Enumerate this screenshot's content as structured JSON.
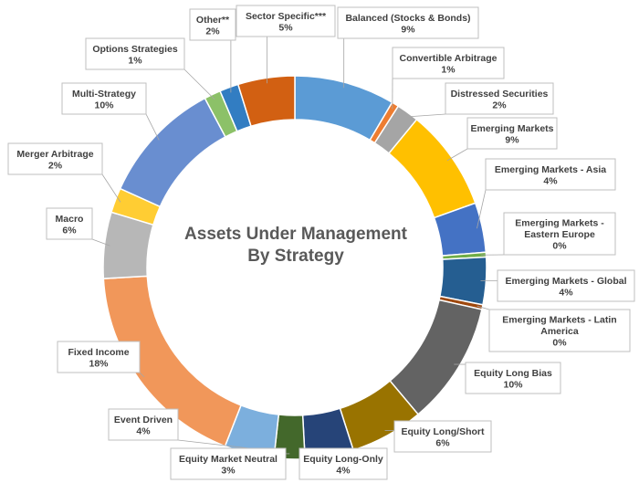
{
  "chart_data": {
    "type": "pie",
    "variant": "doughnut",
    "title_lines": [
      "Assets Under Management",
      "By Strategy"
    ],
    "series": [
      {
        "name": "Balanced (Stocks & Bonds)",
        "label_lines": [
          "Balanced (Stocks & Bonds)"
        ],
        "pct_label": "9%",
        "value": 8.5,
        "color": "#5b9bd5"
      },
      {
        "name": "Convertible Arbitrage",
        "label_lines": [
          "Convertible Arbitrage"
        ],
        "pct_label": "1%",
        "value": 0.6,
        "color": "#ed7d31"
      },
      {
        "name": "Distressed Securities",
        "label_lines": [
          "Distressed Securities"
        ],
        "pct_label": "2%",
        "value": 1.9,
        "color": "#a5a5a5"
      },
      {
        "name": "Emerging Markets",
        "label_lines": [
          "Emerging Markets"
        ],
        "pct_label": "9%",
        "value": 8.6,
        "color": "#ffc000"
      },
      {
        "name": "Emerging Markets - Asia",
        "label_lines": [
          "Emerging Markets - Asia"
        ],
        "pct_label": "4%",
        "value": 4.2,
        "color": "#4472c4"
      },
      {
        "name": "Emerging Markets - Eastern Europe",
        "label_lines": [
          "Emerging Markets -",
          "Eastern Europe"
        ],
        "pct_label": "0%",
        "value": 0.4,
        "color": "#70ad47"
      },
      {
        "name": "Emerging Markets - Global",
        "label_lines": [
          "Emerging Markets - Global"
        ],
        "pct_label": "4%",
        "value": 4.0,
        "color": "#255e91"
      },
      {
        "name": "Emerging Markets - Latin America",
        "label_lines": [
          "Emerging Markets - Latin",
          "America"
        ],
        "pct_label": "0%",
        "value": 0.4,
        "color": "#9e480e"
      },
      {
        "name": "Equity Long Bias",
        "label_lines": [
          "Equity Long Bias"
        ],
        "pct_label": "10%",
        "value": 10.4,
        "color": "#636363"
      },
      {
        "name": "Equity Long/Short",
        "label_lines": [
          "Equity Long/Short"
        ],
        "pct_label": "6%",
        "value": 6.2,
        "color": "#997300"
      },
      {
        "name": "Equity Long-Only",
        "label_lines": [
          "Equity Long-Only"
        ],
        "pct_label": "4%",
        "value": 4.1,
        "color": "#264478"
      },
      {
        "name": "Equity Market Neutral",
        "label_lines": [
          "Equity Market Neutral"
        ],
        "pct_label": "3%",
        "value": 2.6,
        "color": "#43682b"
      },
      {
        "name": "Event Driven",
        "label_lines": [
          "Event Driven"
        ],
        "pct_label": "4%",
        "value": 4.2,
        "color": "#7cafdd"
      },
      {
        "name": "Fixed Income",
        "label_lines": [
          "Fixed Income"
        ],
        "pct_label": "18%",
        "value": 18.2,
        "color": "#f1975a"
      },
      {
        "name": "Macro",
        "label_lines": [
          "Macro"
        ],
        "pct_label": "6%",
        "value": 5.6,
        "color": "#b7b7b7"
      },
      {
        "name": "Merger Arbitrage",
        "label_lines": [
          "Merger Arbitrage"
        ],
        "pct_label": "2%",
        "value": 2.1,
        "color": "#ffcd33"
      },
      {
        "name": "Multi-Strategy",
        "label_lines": [
          "Multi-Strategy"
        ],
        "pct_label": "10%",
        "value": 10.5,
        "color": "#698ed0"
      },
      {
        "name": "Options Strategies",
        "label_lines": [
          "Options Strategies"
        ],
        "pct_label": "1%",
        "value": 1.4,
        "color": "#8cc168"
      },
      {
        "name": "Other**",
        "label_lines": [
          "Other**"
        ],
        "pct_label": "2%",
        "value": 1.6,
        "color": "#327dc2"
      },
      {
        "name": "Sector Specific***",
        "label_lines": [
          "Sector Specific***"
        ],
        "pct_label": "5%",
        "value": 4.8,
        "color": "#d26012"
      }
    ]
  }
}
